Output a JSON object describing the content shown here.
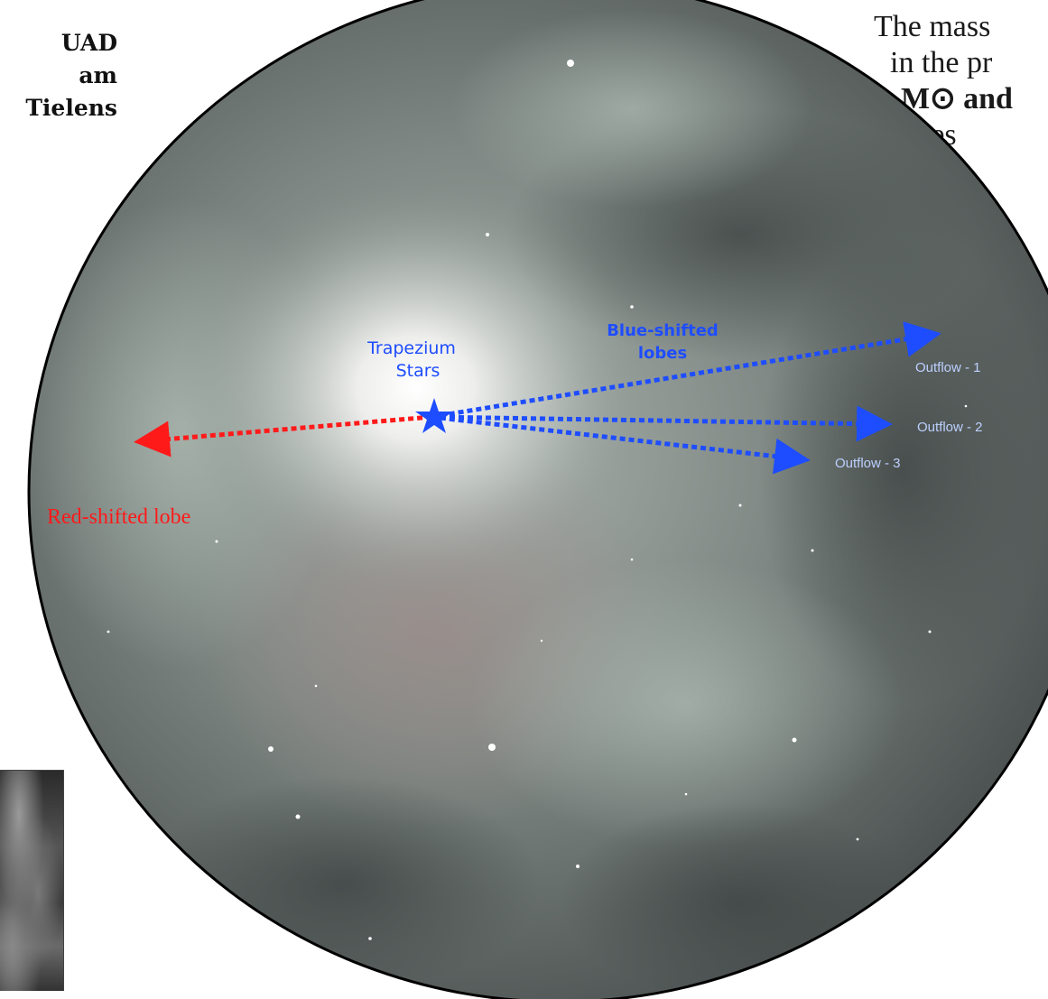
{
  "credit_lines": [
    "UAD",
    "am",
    "Tielens"
  ],
  "mass_text_lines": [
    "The mass",
    "in the pr",
    "M⊙ and",
    "res"
  ],
  "labels": {
    "trapezium": [
      "Trapezium",
      "Stars"
    ],
    "blue_lobes": [
      "Blue-shifted",
      "lobes"
    ],
    "red_lobe": "Red-shifted lobe",
    "outflow_1": "Outflow - 1",
    "outflow_2": "Outflow - 2",
    "outflow_3": "Outflow - 3"
  },
  "colors": {
    "blue": "#1e4dff",
    "red": "#ff1a1a",
    "outflow_label": "#bcd0ff",
    "outline": "#000000"
  },
  "icons": {
    "trapezium_marker": "star-icon"
  }
}
